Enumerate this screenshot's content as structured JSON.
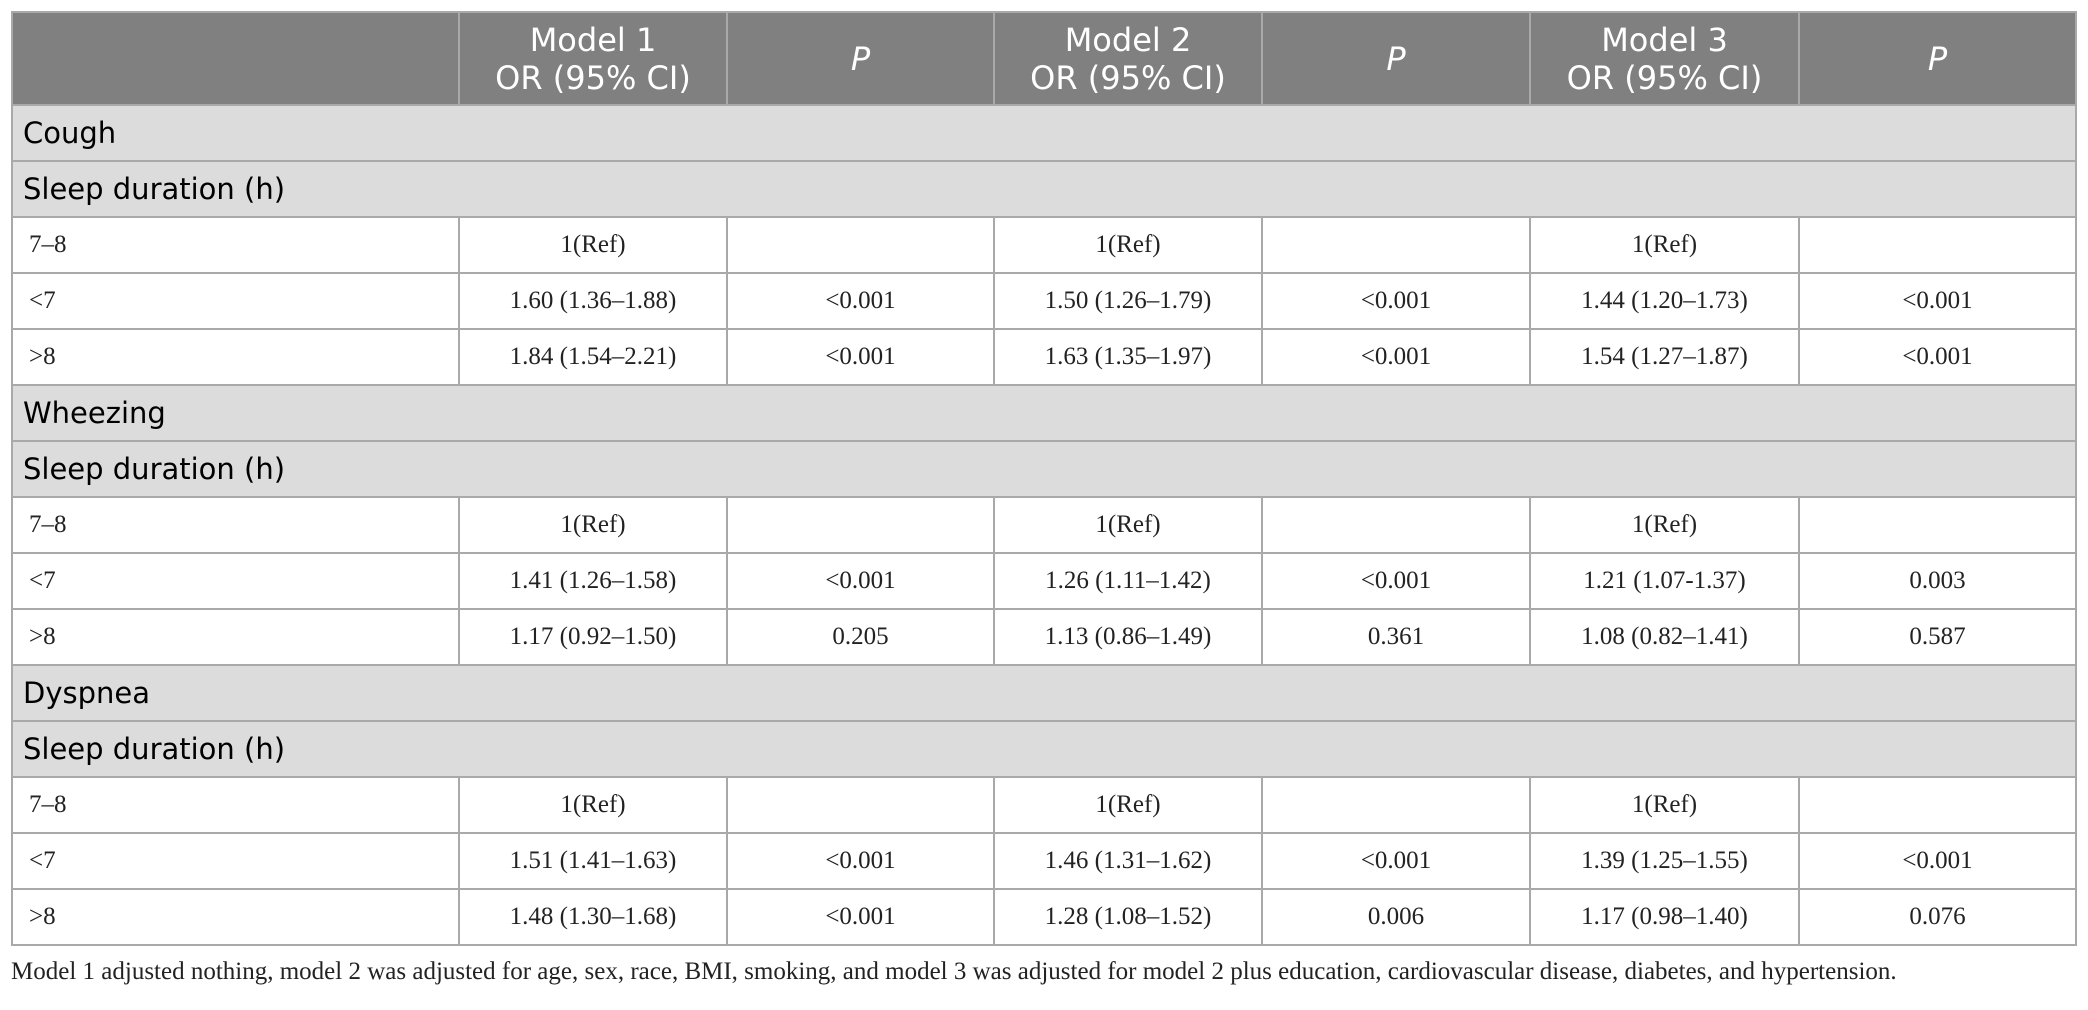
{
  "table": {
    "header": [
      {
        "name": "Model 1",
        "sub": "OR (95% CI)"
      },
      {
        "name": "P"
      },
      {
        "name": "Model 2",
        "sub": "OR (95% CI)"
      },
      {
        "name": "P"
      },
      {
        "name": "Model 3",
        "sub": "OR (95% CI)"
      },
      {
        "name": "P"
      }
    ],
    "sections": [
      {
        "title": "Cough",
        "subtitle": "Sleep duration (h)",
        "rows": [
          [
            "7–8",
            "1(Ref)",
            null,
            "1(Ref)",
            null,
            "1(Ref)",
            null
          ],
          [
            "<7",
            "1.60 (1.36–1.88)",
            "<0.001",
            "1.50 (1.26–1.79)",
            "<0.001",
            "1.44 (1.20–1.73)",
            "<0.001"
          ],
          [
            ">8",
            "1.84 (1.54–2.21)",
            "<0.001",
            "1.63 (1.35–1.97)",
            "<0.001",
            "1.54 (1.27–1.87)",
            "<0.001"
          ]
        ]
      },
      {
        "title": "Wheezing",
        "subtitle": "Sleep duration (h)",
        "rows": [
          [
            "7–8",
            "1(Ref)",
            null,
            "1(Ref)",
            null,
            "1(Ref)",
            null
          ],
          [
            "<7",
            "1.41 (1.26–1.58)",
            "<0.001",
            "1.26 (1.11–1.42)",
            "<0.001",
            "1.21 (1.07-1.37)",
            "0.003"
          ],
          [
            ">8",
            "1.17 (0.92–1.50)",
            "0.205",
            "1.13 (0.86–1.49)",
            "0.361",
            "1.08 (0.82–1.41)",
            "0.587"
          ]
        ]
      },
      {
        "title": "Dyspnea",
        "subtitle": "Sleep duration (h)",
        "rows": [
          [
            "7–8",
            "1(Ref)",
            null,
            "1(Ref)",
            null,
            "1(Ref)",
            null
          ],
          [
            "<7",
            "1.51 (1.41–1.63)",
            "<0.001",
            "1.46 (1.31–1.62)",
            "<0.001",
            "1.39 (1.25–1.55)",
            "<0.001"
          ],
          [
            ">8",
            "1.48 (1.30–1.68)",
            "<0.001",
            "1.28 (1.08–1.52)",
            "0.006",
            "1.17 (0.98–1.40)",
            "0.076"
          ]
        ]
      }
    ]
  },
  "footnote": "Model 1 adjusted nothing, model 2 was adjusted for age, sex, race, BMI, smoking, and model 3 was adjusted for model 2 plus education, cardiovascular disease, diabetes, and hypertension."
}
